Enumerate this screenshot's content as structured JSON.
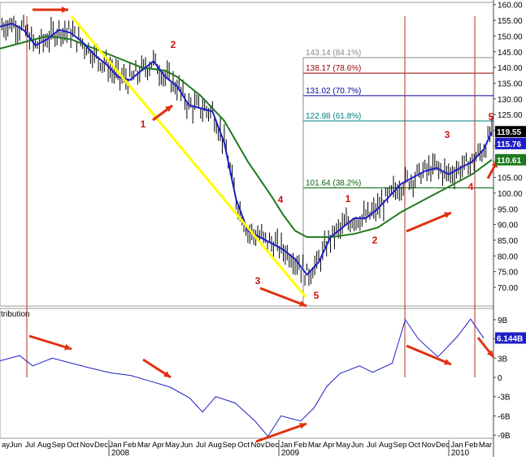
{
  "colors": {
    "price_bars": "#000000",
    "ma_short": "#1e1ec8",
    "ma_long": "#1e7a1e",
    "trendline": "#ffff00",
    "arrows": "#e03010",
    "wave_labels": "#cc1010",
    "vlines": "#b03020",
    "fib_84": "#888888",
    "fib_78": "#990000",
    "fib_70": "#000099",
    "fib_61": "#008080",
    "fib_38": "#006600",
    "indicator_line": "#1e1ec8",
    "last_price_bg": "#000000",
    "ma_short_badge_bg": "#1e1ec8",
    "ma_long_badge_bg": "#1e7a1e",
    "indicator_badge_bg": "#1e1ec8"
  },
  "chart_data": [
    {
      "type": "line",
      "title": "",
      "y_ticks": [
        "160.00",
        "155.00",
        "150.00",
        "145.00",
        "140.00",
        "135.00",
        "130.00",
        "125.00",
        "120.00",
        "115.00",
        "110.00",
        "105.00",
        "100.00",
        "95.00",
        "90.00",
        "85.00",
        "80.00",
        "75.00",
        "70.00"
      ],
      "ylim": [
        67,
        161
      ],
      "last_price_label": "119.55",
      "ma_short_label": "115.76",
      "ma_long_label": "110.61",
      "x_month_labels": [
        "ay",
        "Jun",
        "Jul",
        "Aug",
        "Sep",
        "Oct",
        "Nov",
        "Dec",
        "Jan",
        "Feb",
        "Mar",
        "Apr",
        "May",
        "Jun",
        "Jul",
        "Aug",
        "Sep",
        "Oct",
        "Nov",
        "Dec",
        "Jan",
        "Feb",
        "Mar",
        "Apr",
        "May",
        "Jun",
        "Jul",
        "Aug",
        "Sep",
        "Oct",
        "Nov",
        "Dec",
        "Jan",
        "Feb",
        "Mar"
      ],
      "x_year_labels": [
        "2008",
        "2009",
        "2010"
      ],
      "series": [
        {
          "values": [
            [
              0,
              153
            ],
            [
              6,
              154
            ],
            [
              12,
              152
            ],
            [
              18,
              147
            ],
            [
              24,
              149
            ],
            [
              30,
              152
            ],
            [
              36,
              151
            ],
            [
              42,
              148
            ],
            [
              48,
              144
            ],
            [
              54,
              141
            ],
            [
              60,
              137
            ],
            [
              66,
              136
            ],
            [
              72,
              139
            ],
            [
              78,
              142
            ],
            [
              84,
              137
            ],
            [
              90,
              134
            ],
            [
              96,
              128
            ],
            [
              102,
              127
            ],
            [
              108,
              126
            ],
            [
              114,
              116
            ],
            [
              120,
              98
            ],
            [
              126,
              88
            ],
            [
              132,
              86
            ],
            [
              138,
              84
            ],
            [
              144,
              82
            ],
            [
              150,
              79
            ],
            [
              156,
              74
            ],
            [
              162,
              78
            ],
            [
              168,
              86
            ],
            [
              174,
              89
            ],
            [
              180,
              92
            ],
            [
              186,
              92
            ],
            [
              192,
              95
            ],
            [
              198,
              99
            ],
            [
              204,
              103
            ],
            [
              210,
              105
            ],
            [
              216,
              107
            ],
            [
              222,
              108
            ],
            [
              228,
              106
            ],
            [
              234,
              108
            ],
            [
              240,
              110
            ],
            [
              246,
              114
            ],
            [
              250,
              119.55
            ]
          ]
        },
        {
          "values": [
            [
              0,
              146
            ],
            [
              12,
              148
            ],
            [
              24,
              150
            ],
            [
              36,
              149
            ],
            [
              48,
              146
            ],
            [
              60,
              143
            ],
            [
              72,
              140
            ],
            [
              84,
              139
            ],
            [
              90,
              137
            ],
            [
              102,
              131
            ],
            [
              114,
              123
            ],
            [
              126,
              110
            ],
            [
              138,
              99
            ],
            [
              144,
              93
            ],
            [
              150,
              88
            ],
            [
              156,
              86
            ],
            [
              168,
              86
            ],
            [
              180,
              87
            ],
            [
              192,
              89
            ],
            [
              204,
              94
            ],
            [
              216,
              98
            ],
            [
              228,
              102
            ],
            [
              240,
              106
            ],
            [
              250,
              110.61
            ]
          ]
        }
      ],
      "fib_levels": [
        {
          "value": 143.14,
          "label": "143.14 (84.1%)"
        },
        {
          "value": 138.17,
          "label": "138.17 (78.6%)"
        },
        {
          "value": 131.02,
          "label": "131.02 (70.7%)"
        },
        {
          "value": 122.98,
          "label": "122.98 (61.8%)"
        },
        {
          "value": 101.64,
          "label": "101.64 (38.2%)"
        }
      ],
      "wave_labels": [
        "2",
        "1",
        "4",
        "3",
        "5",
        "1",
        "2",
        "3",
        "4",
        "5"
      ]
    },
    {
      "type": "line",
      "title": "tribution",
      "y_ticks": [
        "9B",
        "6B",
        "3B",
        "0",
        "-3B",
        "-6B",
        "-9B"
      ],
      "ylim": [
        -10,
        10
      ],
      "last_value_label": "6.144B",
      "series": [
        {
          "values": [
            [
              0,
              2.6
            ],
            [
              6,
              3.4
            ],
            [
              10,
              1.8
            ],
            [
              16,
              3.0
            ],
            [
              22,
              2.2
            ],
            [
              28,
              1.4
            ],
            [
              34,
              0.7
            ],
            [
              40,
              0.3
            ],
            [
              46,
              -0.6
            ],
            [
              52,
              -1.5
            ],
            [
              58,
              -3.2
            ],
            [
              62,
              -5.4
            ],
            [
              66,
              -3.0
            ],
            [
              72,
              -4.0
            ],
            [
              78,
              -6.8
            ],
            [
              82,
              -9.2
            ],
            [
              86,
              -6.0
            ],
            [
              92,
              -6.8
            ],
            [
              96,
              -4.8
            ],
            [
              100,
              -1.4
            ],
            [
              104,
              0.6
            ],
            [
              110,
              1.8
            ],
            [
              114,
              0.8
            ],
            [
              120,
              2.2
            ],
            [
              124,
              9.0
            ],
            [
              128,
              6.0
            ],
            [
              134,
              3.2
            ],
            [
              140,
              6.4
            ],
            [
              144,
              9.1
            ],
            [
              148,
              6.1
            ]
          ]
        }
      ]
    }
  ]
}
